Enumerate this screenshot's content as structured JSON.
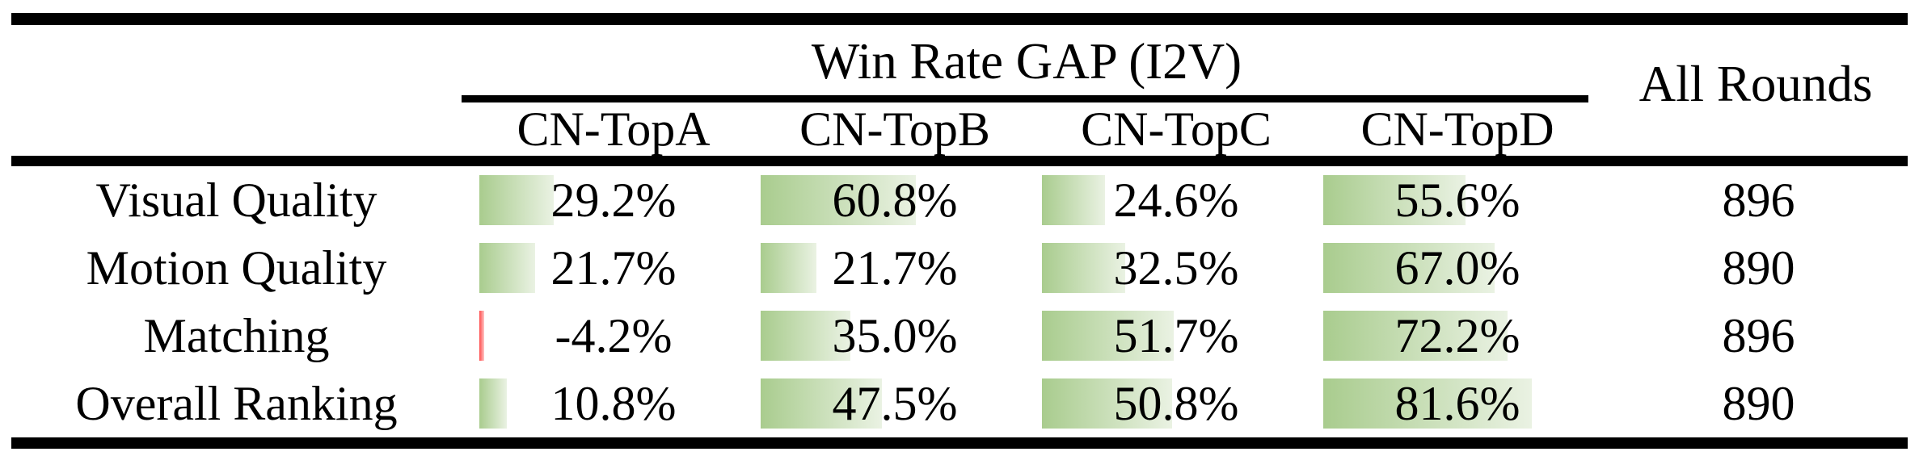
{
  "table": {
    "group_header": "Win Rate GAP (I2V)",
    "all_rounds_header": "All Rounds",
    "columns": [
      "CN-TopA",
      "CN-TopB",
      "CN-TopC",
      "CN-TopD"
    ],
    "rows": [
      {
        "label": "Visual Quality",
        "values": [
          29.2,
          60.8,
          24.6,
          55.6
        ],
        "cells": [
          "29.2%",
          "60.8%",
          "24.6%",
          "55.6%"
        ],
        "all_rounds": "896"
      },
      {
        "label": "Motion Quality",
        "values": [
          21.7,
          21.7,
          32.5,
          67.0
        ],
        "cells": [
          "21.7%",
          "21.7%",
          "32.5%",
          "67.0%"
        ],
        "all_rounds": "890"
      },
      {
        "label": "Matching",
        "values": [
          -4.2,
          35.0,
          51.7,
          72.2
        ],
        "cells": [
          "-4.2%",
          "35.0%",
          "51.7%",
          "72.2%"
        ],
        "all_rounds": "896"
      },
      {
        "label": "Overall Ranking",
        "values": [
          10.8,
          47.5,
          50.8,
          81.6
        ],
        "cells": [
          "10.8%",
          "47.5%",
          "50.8%",
          "81.6%"
        ],
        "all_rounds": "890"
      }
    ]
  },
  "chart_data": {
    "type": "table",
    "title": "Win Rate GAP (I2V)",
    "columns": [
      "CN-TopA",
      "CN-TopB",
      "CN-TopC",
      "CN-TopD",
      "All Rounds"
    ],
    "categories": [
      "Visual Quality",
      "Motion Quality",
      "Matching",
      "Overall Ranking"
    ],
    "series": [
      {
        "name": "CN-TopA",
        "values": [
          29.2,
          21.7,
          -4.2,
          10.8
        ]
      },
      {
        "name": "CN-TopB",
        "values": [
          60.8,
          21.7,
          35.0,
          47.5
        ]
      },
      {
        "name": "CN-TopC",
        "values": [
          24.6,
          32.5,
          51.7,
          50.8
        ]
      },
      {
        "name": "CN-TopD",
        "values": [
          55.6,
          67.0,
          72.2,
          81.6
        ]
      }
    ],
    "all_rounds": [
      896,
      890,
      896,
      890
    ],
    "bar_scale": [
      0,
      100
    ]
  },
  "colors": {
    "background": "#ffffff",
    "text": "#000000",
    "bar_positive_start": "#a9cc8e",
    "bar_positive_end": "#eaf2e3",
    "bar_negative_start": "#ff4b4b",
    "bar_negative_end": "#ffc6c6"
  }
}
